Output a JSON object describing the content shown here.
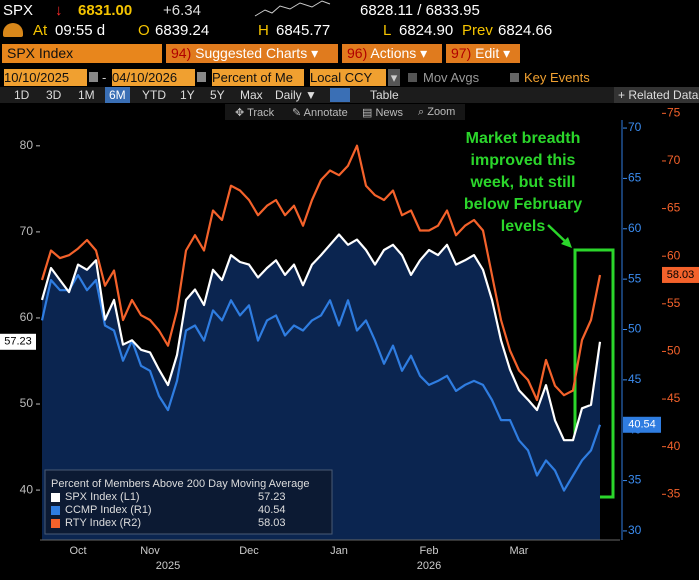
{
  "header": {
    "ticker": "SPX",
    "arrow": "↓",
    "last": "6831.00",
    "change": "+6.34",
    "bid_ask": "6828.11 / 6833.95",
    "at_label": "At",
    "time": "09:55 d",
    "open_label": "O",
    "open": "6839.24",
    "high_label": "H",
    "high": "6845.77",
    "low_label": "L",
    "low": "6824.90",
    "prev_label": "Prev",
    "prev": "6824.66"
  },
  "toolbar": {
    "security": "SPX Index",
    "menus": [
      {
        "num": "94)",
        "label": "Suggested Charts"
      },
      {
        "num": "96)",
        "label": "Actions"
      },
      {
        "num": "97)",
        "label": "Edit"
      }
    ]
  },
  "controls": {
    "start_date": "10/10/2025",
    "end_date": "04/10/2026",
    "field": "Percent of Me",
    "currency": "Local CCY",
    "mov_avgs": "Mov Avgs",
    "key_events": "Key Events"
  },
  "periods": [
    "1D",
    "3D",
    "1M",
    "6M",
    "YTD",
    "1Y",
    "5Y",
    "Max"
  ],
  "frequency": "Daily",
  "table": "Table",
  "related": "+ Related Data",
  "tools": [
    "Track",
    "Annotate",
    "News",
    "Zoom"
  ],
  "chart_data": {
    "type": "line",
    "legend_title": "Percent of Members Above 200 Day Moving Average",
    "annotation": "Market breadth improved this week, but still below February levels",
    "categories": [
      null,
      null,
      null,
      null,
      "Oct",
      null,
      null,
      null,
      null,
      null,
      null,
      null,
      "Nov",
      null,
      null,
      null,
      null,
      null,
      null,
      null,
      null,
      null,
      null,
      "Dec",
      null,
      null,
      null,
      null,
      null,
      null,
      null,
      null,
      null,
      "Jan",
      null,
      null,
      null,
      null,
      null,
      null,
      null,
      null,
      null,
      "Feb",
      null,
      null,
      null,
      null,
      null,
      null,
      null,
      null,
      null,
      "Mar",
      null,
      null,
      null,
      null,
      null,
      null,
      null,
      null,
      null
    ],
    "year_categories": [
      null,
      null,
      null,
      null,
      null,
      null,
      null,
      null,
      null,
      null,
      null,
      null,
      null,
      null,
      "2025",
      null,
      null,
      null,
      null,
      null,
      null,
      null,
      null,
      null,
      null,
      null,
      null,
      null,
      null,
      null,
      null,
      null,
      null,
      null,
      null,
      null,
      null,
      null,
      null,
      null,
      null,
      null,
      null,
      "2026",
      null,
      null,
      null,
      null,
      null,
      null,
      null,
      null,
      null,
      null,
      null,
      null,
      null,
      null,
      null,
      null,
      null,
      null,
      null
    ],
    "series": [
      {
        "name": "SPX Index (L1)",
        "color": "#ffffff",
        "fill": "#0b2550",
        "axis": "y",
        "values": [
          62.1,
          65.8,
          64.4,
          63.0,
          66.2,
          65.6,
          66.7,
          59.8,
          62.1,
          56.9,
          57.4,
          56.3,
          56.0,
          54.0,
          52.2,
          55.7,
          62.1,
          63.3,
          61.5,
          65.6,
          64.4,
          67.3,
          66.5,
          66.2,
          64.7,
          65.8,
          66.7,
          65.0,
          66.2,
          63.8,
          66.2,
          67.3,
          68.5,
          69.7,
          68.5,
          69.1,
          67.9,
          66.2,
          67.9,
          68.5,
          67.3,
          65.0,
          66.7,
          67.9,
          67.3,
          68.5,
          66.2,
          66.7,
          67.3,
          65.6,
          62.1,
          57.4,
          54.0,
          51.6,
          50.5,
          49.3,
          52.2,
          48.1,
          45.8,
          45.8,
          49.5,
          49.9,
          57.23
        ]
      },
      {
        "name": "CCMP Index (R1)",
        "color": "#2f7de1",
        "axis": "y2",
        "values": [
          50.9,
          54.9,
          53.9,
          53.9,
          55.4,
          53.9,
          54.9,
          50.4,
          49.9,
          46.9,
          48.9,
          46.4,
          45.9,
          43.4,
          42.0,
          44.9,
          49.9,
          50.4,
          48.9,
          51.9,
          50.9,
          52.9,
          51.4,
          52.4,
          48.9,
          50.9,
          51.4,
          49.4,
          50.4,
          49.9,
          50.9,
          51.4,
          52.9,
          50.4,
          52.9,
          49.9,
          50.9,
          48.9,
          46.6,
          48.4,
          45.9,
          47.4,
          45.4,
          44.5,
          44.9,
          45.4,
          43.9,
          44.5,
          44.9,
          44.5,
          43.0,
          41.0,
          41.0,
          39.0,
          38.0,
          35.5,
          37.0,
          36.0,
          34.0,
          35.5,
          37.0,
          38.0,
          40.54
        ]
      },
      {
        "name": "RTY Index (R2)",
        "color": "#f4622b",
        "axis": "y3",
        "values": [
          57.5,
          60.6,
          59.8,
          60.1,
          60.8,
          61.7,
          60.6,
          56.9,
          58.5,
          53.3,
          55.4,
          53.8,
          53.3,
          52.2,
          50.6,
          54.3,
          60.6,
          62.2,
          60.6,
          64.8,
          63.8,
          67.4,
          66.9,
          65.9,
          64.3,
          65.3,
          65.9,
          64.3,
          65.3,
          63.2,
          65.9,
          68.0,
          69.0,
          68.5,
          69.5,
          71.6,
          67.4,
          66.4,
          65.9,
          66.9,
          64.3,
          64.8,
          62.7,
          62.7,
          63.2,
          64.8,
          62.2,
          63.2,
          63.8,
          62.7,
          58.0,
          53.3,
          50.1,
          48.0,
          47.0,
          44.9,
          49.1,
          46.4,
          45.4,
          45.9,
          51.2,
          53.3,
          58.03
        ]
      }
    ],
    "ylim": [
      34.2,
      83
    ],
    "yticks": [
      40,
      50,
      60,
      70,
      80
    ],
    "y2lim": [
      29.1,
      70.8
    ],
    "y2ticks": [
      30,
      35,
      40,
      45,
      50,
      55,
      60,
      65,
      70
    ],
    "y3lim": [
      30.2,
      74.3
    ],
    "y3ticks": [
      35,
      40,
      45,
      50,
      55,
      60,
      65,
      70,
      75
    ],
    "grid": false
  }
}
